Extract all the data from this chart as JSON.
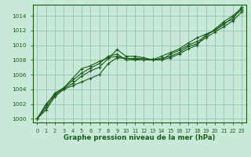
{
  "title": "Graphe pression niveau de la mer (hPa)",
  "bg_color": "#c8e8d8",
  "grid_color": "#9ec8b8",
  "line_color": "#1a5c1a",
  "xlim": [
    -0.5,
    23.5
  ],
  "ylim": [
    999.5,
    1015.5
  ],
  "yticks": [
    1000,
    1002,
    1004,
    1006,
    1008,
    1010,
    1012,
    1014
  ],
  "xticks": [
    0,
    1,
    2,
    3,
    4,
    5,
    6,
    7,
    8,
    9,
    10,
    11,
    12,
    13,
    14,
    15,
    16,
    17,
    18,
    19,
    20,
    21,
    22,
    23
  ],
  "series": [
    [
      1000.0,
      1002.0,
      1003.3,
      1004.1,
      1004.8,
      1005.8,
      1006.5,
      1007.0,
      1008.2,
      1009.4,
      1008.5,
      1008.5,
      1008.3,
      1008.0,
      1008.5,
      1009.0,
      1009.5,
      1010.3,
      1011.0,
      1011.5,
      1012.0,
      1013.0,
      1013.5,
      1015.2
    ],
    [
      1000.0,
      1001.8,
      1003.5,
      1004.2,
      1005.2,
      1006.2,
      1006.9,
      1007.5,
      1008.5,
      1008.8,
      1008.0,
      1008.0,
      1008.0,
      1008.1,
      1008.0,
      1008.8,
      1009.3,
      1010.0,
      1010.5,
      1011.2,
      1012.2,
      1013.2,
      1014.0,
      1015.0
    ],
    [
      1000.0,
      1001.5,
      1003.2,
      1004.2,
      1005.5,
      1006.8,
      1007.2,
      1007.8,
      1008.3,
      1008.5,
      1008.2,
      1008.2,
      1008.2,
      1008.0,
      1008.2,
      1008.5,
      1009.0,
      1009.8,
      1010.2,
      1011.0,
      1011.8,
      1012.5,
      1013.3,
      1014.5
    ],
    [
      1000.0,
      1001.2,
      1003.0,
      1004.0,
      1004.5,
      1005.0,
      1005.5,
      1006.0,
      1007.5,
      1008.3,
      1008.2,
      1008.1,
      1008.0,
      1008.0,
      1008.0,
      1008.3,
      1008.8,
      1009.5,
      1010.0,
      1011.5,
      1012.0,
      1012.8,
      1013.8,
      1014.8
    ]
  ]
}
